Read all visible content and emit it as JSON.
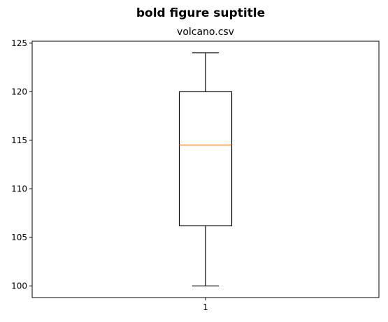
{
  "chart_data": {
    "type": "boxplot",
    "suptitle": "bold figure suptitle",
    "title": "volcano.csv",
    "categories": [
      "1"
    ],
    "boxes": [
      {
        "whisker_low": 100,
        "q1": 106.2,
        "median": 114.5,
        "q3": 120,
        "whisker_high": 124
      }
    ],
    "yticks": [
      100,
      105,
      110,
      115,
      120,
      125
    ],
    "ylim": [
      98.8,
      125.2
    ],
    "grid": false,
    "colors": {
      "box": "#000000",
      "median": "#ff7f0e",
      "axes": "#000000"
    }
  }
}
